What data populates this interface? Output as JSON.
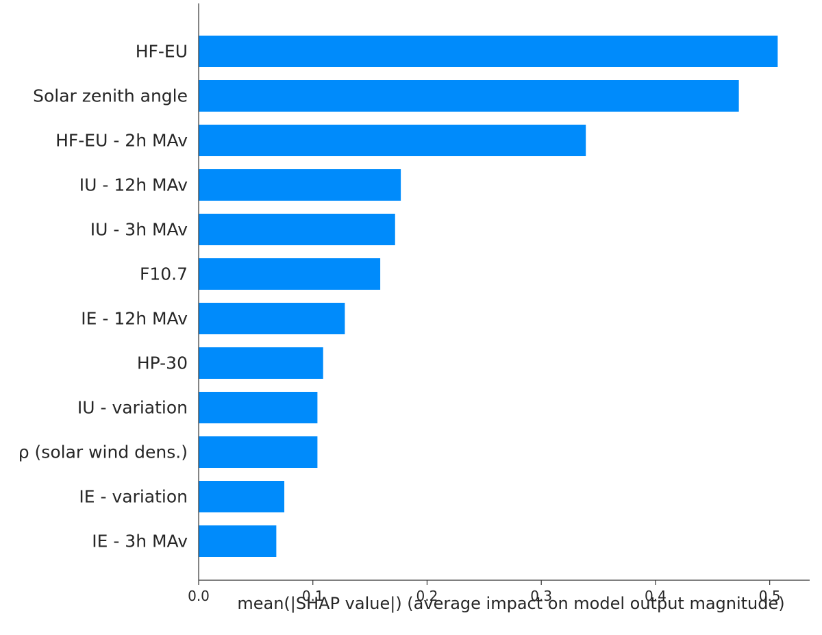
{
  "chart_data": {
    "type": "bar",
    "orientation": "horizontal",
    "categories": [
      "HF-EU",
      "Solar zenith angle",
      "HF-EU - 2h MAv",
      "IU - 12h MAv",
      "IU - 3h MAv",
      "F10.7",
      "IE - 12h MAv",
      "HP-30",
      "IU - variation",
      "ρ (solar wind dens.)",
      "IE - variation",
      "IE - 3h MAv"
    ],
    "values": [
      0.507,
      0.473,
      0.339,
      0.177,
      0.172,
      0.159,
      0.128,
      0.109,
      0.104,
      0.104,
      0.075,
      0.068
    ],
    "title": "",
    "xlabel": "mean(|SHAP value|) (average impact on model output magnitude)",
    "ylabel": "",
    "xlim": [
      0.0,
      0.535
    ],
    "xticks": [
      0.0,
      0.1,
      0.2,
      0.3,
      0.4,
      0.5
    ],
    "xtick_labels": [
      "0.0",
      "0.1",
      "0.2",
      "0.3",
      "0.4",
      "0.5"
    ],
    "grid": false,
    "bar_color": "#008bfb"
  }
}
